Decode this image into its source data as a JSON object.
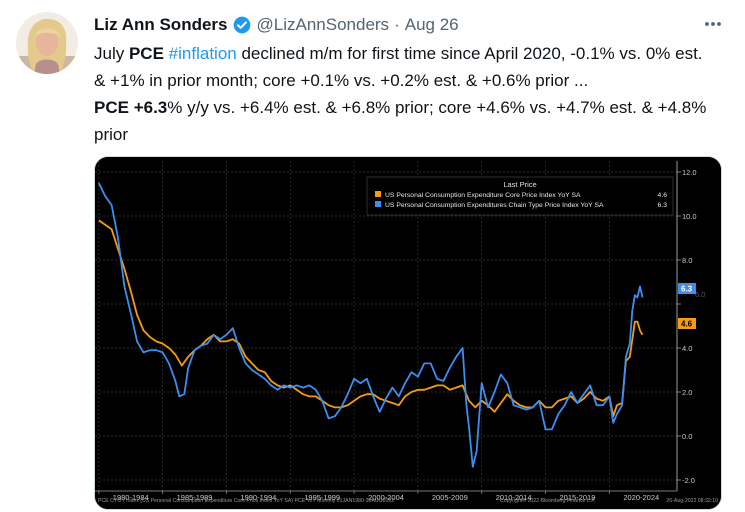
{
  "tweet": {
    "author_name": "Liz Ann Sonders",
    "handle": "@LizAnnSonders",
    "separator": "·",
    "date": "Aug 26",
    "line1": {
      "t1": "July ",
      "b1": "PCE",
      "t2": " ",
      "hashtag": "#inflation",
      "t3": " declined m/m for first time since April 2020, -0.1% vs. 0% est. & +1% in prior month; core +0.1% vs. +0.2% est. & +0.6% prior ..."
    },
    "line2": {
      "b1": "PCE",
      "t1": " ",
      "b2": "+6.3",
      "t2": "% y/y vs. +6.4% est. & +6.8% prior; core +4.6% vs. +4.7% est. & +4.8% prior"
    }
  },
  "icons": {
    "verified": "verified-badge-icon",
    "more": "more-options-icon"
  },
  "colors": {
    "core_series": "#f59b14",
    "headline_series": "#3d8ef0",
    "hashtag": "#1d9bf0",
    "muted": "#536471"
  },
  "chart_data": {
    "type": "line",
    "legend_title": "Last Price",
    "legend_position": "top-right",
    "series": [
      {
        "name": "US Personal Consumption Expenditure Core Price Index YoY SA",
        "last": "4.6",
        "color": "#f59b14",
        "points": [
          [
            1980.0,
            9.8
          ],
          [
            1980.5,
            9.6
          ],
          [
            1981.0,
            9.4
          ],
          [
            1981.5,
            8.5
          ],
          [
            1982.0,
            7.6
          ],
          [
            1982.5,
            6.6
          ],
          [
            1983.0,
            5.5
          ],
          [
            1983.5,
            4.8
          ],
          [
            1984.0,
            4.5
          ],
          [
            1984.5,
            4.3
          ],
          [
            1985.0,
            4.2
          ],
          [
            1985.5,
            4.0
          ],
          [
            1986.0,
            3.7
          ],
          [
            1986.5,
            3.2
          ],
          [
            1987.0,
            3.6
          ],
          [
            1987.5,
            3.9
          ],
          [
            1988.0,
            4.1
          ],
          [
            1988.5,
            4.4
          ],
          [
            1989.0,
            4.6
          ],
          [
            1989.5,
            4.3
          ],
          [
            1990.0,
            4.3
          ],
          [
            1990.5,
            4.4
          ],
          [
            1991.0,
            4.2
          ],
          [
            1991.5,
            3.6
          ],
          [
            1992.0,
            3.3
          ],
          [
            1992.5,
            3.0
          ],
          [
            1993.0,
            2.9
          ],
          [
            1993.5,
            2.5
          ],
          [
            1994.0,
            2.3
          ],
          [
            1994.5,
            2.2
          ],
          [
            1995.0,
            2.3
          ],
          [
            1995.5,
            2.1
          ],
          [
            1996.0,
            1.9
          ],
          [
            1996.5,
            1.8
          ],
          [
            1997.0,
            1.8
          ],
          [
            1997.5,
            1.6
          ],
          [
            1998.0,
            1.4
          ],
          [
            1998.5,
            1.3
          ],
          [
            1999.0,
            1.3
          ],
          [
            1999.5,
            1.4
          ],
          [
            2000.0,
            1.6
          ],
          [
            2000.5,
            1.8
          ],
          [
            2001.0,
            1.9
          ],
          [
            2001.5,
            1.9
          ],
          [
            2002.0,
            1.7
          ],
          [
            2002.5,
            1.6
          ],
          [
            2003.0,
            1.5
          ],
          [
            2003.5,
            1.4
          ],
          [
            2004.0,
            1.8
          ],
          [
            2004.5,
            2.0
          ],
          [
            2005.0,
            2.1
          ],
          [
            2005.5,
            2.1
          ],
          [
            2006.0,
            2.2
          ],
          [
            2006.5,
            2.3
          ],
          [
            2007.0,
            2.3
          ],
          [
            2007.5,
            2.1
          ],
          [
            2008.0,
            2.2
          ],
          [
            2008.5,
            2.3
          ],
          [
            2009.0,
            1.6
          ],
          [
            2009.5,
            1.3
          ],
          [
            2010.0,
            1.6
          ],
          [
            2010.5,
            1.4
          ],
          [
            2011.0,
            1.1
          ],
          [
            2011.5,
            1.5
          ],
          [
            2012.0,
            1.9
          ],
          [
            2012.5,
            1.6
          ],
          [
            2013.0,
            1.4
          ],
          [
            2013.5,
            1.3
          ],
          [
            2014.0,
            1.3
          ],
          [
            2014.5,
            1.6
          ],
          [
            2015.0,
            1.3
          ],
          [
            2015.5,
            1.3
          ],
          [
            2016.0,
            1.6
          ],
          [
            2016.5,
            1.7
          ],
          [
            2017.0,
            1.8
          ],
          [
            2017.5,
            1.5
          ],
          [
            2018.0,
            1.7
          ],
          [
            2018.5,
            2.0
          ],
          [
            2019.0,
            1.7
          ],
          [
            2019.5,
            1.6
          ],
          [
            2020.0,
            1.8
          ],
          [
            2020.3,
            0.9
          ],
          [
            2020.6,
            1.4
          ],
          [
            2021.0,
            1.5
          ],
          [
            2021.3,
            3.4
          ],
          [
            2021.6,
            3.6
          ],
          [
            2022.0,
            5.2
          ],
          [
            2022.2,
            5.2
          ],
          [
            2022.4,
            4.8
          ],
          [
            2022.6,
            4.6
          ]
        ]
      },
      {
        "name": "US Personal Consumption Expenditures Chain Type Price Index YoY SA",
        "last": "6.3",
        "color": "#3d8ef0",
        "points": [
          [
            1980.0,
            11.5
          ],
          [
            1980.5,
            10.9
          ],
          [
            1981.0,
            10.5
          ],
          [
            1981.5,
            9.0
          ],
          [
            1982.0,
            6.8
          ],
          [
            1982.5,
            5.6
          ],
          [
            1983.0,
            4.3
          ],
          [
            1983.5,
            3.8
          ],
          [
            1984.0,
            3.9
          ],
          [
            1984.5,
            3.9
          ],
          [
            1985.0,
            3.8
          ],
          [
            1985.5,
            3.3
          ],
          [
            1986.0,
            2.5
          ],
          [
            1986.3,
            1.8
          ],
          [
            1986.7,
            1.9
          ],
          [
            1987.0,
            3.1
          ],
          [
            1987.5,
            3.9
          ],
          [
            1988.0,
            4.1
          ],
          [
            1988.5,
            4.2
          ],
          [
            1989.0,
            4.6
          ],
          [
            1989.5,
            4.4
          ],
          [
            1990.0,
            4.6
          ],
          [
            1990.5,
            4.9
          ],
          [
            1991.0,
            4.0
          ],
          [
            1991.5,
            3.3
          ],
          [
            1992.0,
            3.0
          ],
          [
            1992.5,
            2.8
          ],
          [
            1993.0,
            2.6
          ],
          [
            1993.5,
            2.3
          ],
          [
            1994.0,
            2.1
          ],
          [
            1994.5,
            2.3
          ],
          [
            1995.0,
            2.2
          ],
          [
            1995.5,
            2.3
          ],
          [
            1996.0,
            2.2
          ],
          [
            1996.5,
            2.3
          ],
          [
            1997.0,
            2.1
          ],
          [
            1997.5,
            1.6
          ],
          [
            1998.0,
            0.8
          ],
          [
            1998.5,
            0.9
          ],
          [
            1999.0,
            1.3
          ],
          [
            1999.5,
            1.9
          ],
          [
            2000.0,
            2.6
          ],
          [
            2000.5,
            2.4
          ],
          [
            2001.0,
            2.6
          ],
          [
            2001.5,
            1.8
          ],
          [
            2002.0,
            1.1
          ],
          [
            2002.5,
            1.7
          ],
          [
            2003.0,
            2.2
          ],
          [
            2003.5,
            1.8
          ],
          [
            2004.0,
            2.4
          ],
          [
            2004.5,
            2.9
          ],
          [
            2005.0,
            2.7
          ],
          [
            2005.5,
            3.3
          ],
          [
            2006.0,
            3.3
          ],
          [
            2006.5,
            2.6
          ],
          [
            2007.0,
            2.5
          ],
          [
            2007.5,
            3.1
          ],
          [
            2008.0,
            3.6
          ],
          [
            2008.5,
            4.0
          ],
          [
            2008.8,
            1.4
          ],
          [
            2009.0,
            0.4
          ],
          [
            2009.3,
            -1.4
          ],
          [
            2009.6,
            -0.7
          ],
          [
            2010.0,
            2.4
          ],
          [
            2010.5,
            1.3
          ],
          [
            2011.0,
            2.0
          ],
          [
            2011.5,
            2.8
          ],
          [
            2012.0,
            2.4
          ],
          [
            2012.5,
            1.4
          ],
          [
            2013.0,
            1.3
          ],
          [
            2013.5,
            1.2
          ],
          [
            2014.0,
            1.3
          ],
          [
            2014.5,
            1.6
          ],
          [
            2015.0,
            0.3
          ],
          [
            2015.5,
            0.3
          ],
          [
            2016.0,
            1.0
          ],
          [
            2016.5,
            1.4
          ],
          [
            2017.0,
            2.0
          ],
          [
            2017.5,
            1.5
          ],
          [
            2018.0,
            1.9
          ],
          [
            2018.5,
            2.3
          ],
          [
            2019.0,
            1.4
          ],
          [
            2019.5,
            1.4
          ],
          [
            2020.0,
            1.8
          ],
          [
            2020.3,
            0.6
          ],
          [
            2020.6,
            1.0
          ],
          [
            2021.0,
            1.4
          ],
          [
            2021.3,
            3.6
          ],
          [
            2021.6,
            4.2
          ],
          [
            2021.8,
            5.7
          ],
          [
            2022.0,
            6.4
          ],
          [
            2022.2,
            6.3
          ],
          [
            2022.4,
            6.8
          ],
          [
            2022.6,
            6.3
          ]
        ]
      }
    ],
    "last_value_labels": [
      "6.3",
      "4.6"
    ],
    "hidden_label": "6.0",
    "y_axis": {
      "ticks": [
        "12.0",
        "10.0",
        "8.0",
        "6.0",
        "4.0",
        "2.0",
        "0.0",
        "-2.0"
      ],
      "range": [
        -2.5,
        12.5
      ]
    },
    "x_axis": {
      "range": [
        1979.7,
        2025.3
      ],
      "ticks": [
        "1980-1984",
        "1985-1989",
        "1990-1994",
        "1995-1999",
        "2000-2004",
        "2005-2009",
        "2010-2014",
        "2015-2019",
        "2020-2024"
      ]
    },
    "footer": {
      "source": "PCE CYOY Index (US Personal Consumption Expenditure Core Price Index YoY SA) PCE YoY  Monthly 01JAN1980-30AUG2022",
      "copyright": "Copyright© 2022 Bloomberg Finance L.P.",
      "stamp": "26-Aug-2022 08:32:10"
    }
  }
}
